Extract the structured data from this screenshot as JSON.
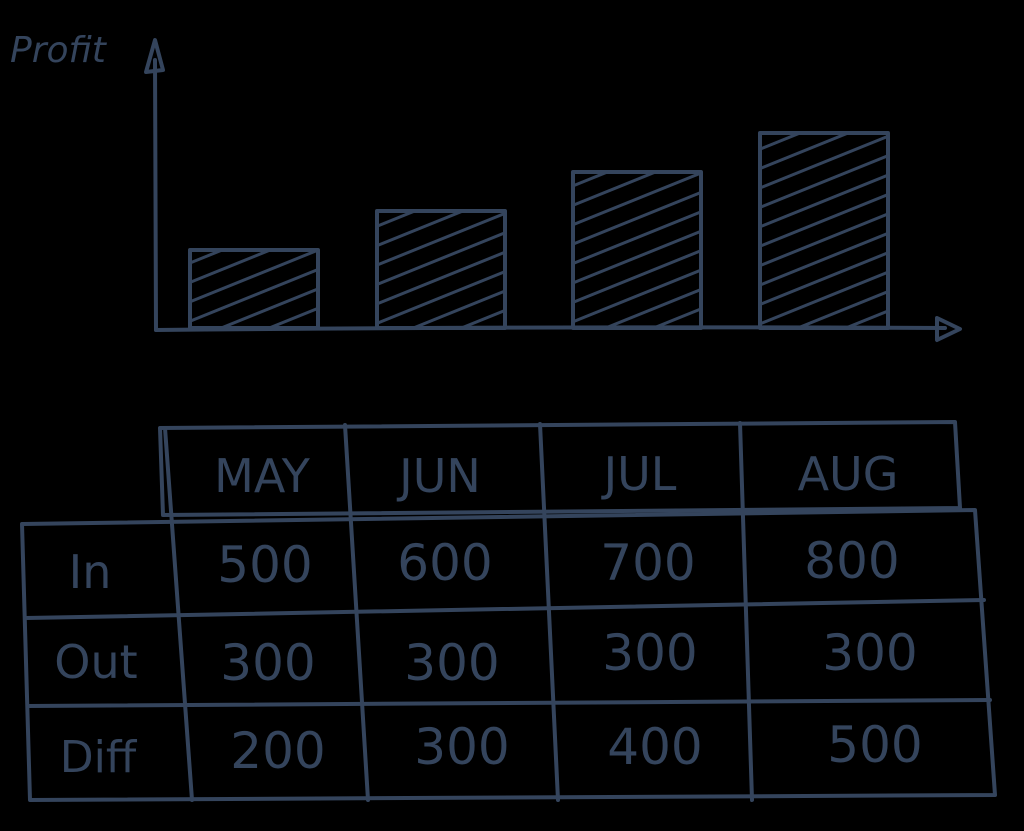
{
  "colors": {
    "background": "#000000",
    "ink": "#34445c"
  },
  "chart_data": {
    "type": "bar",
    "ylabel": "Profit",
    "xlabel": "",
    "categories": [
      "MAY",
      "JUN",
      "JUL",
      "AUG"
    ],
    "values": [
      200,
      300,
      400,
      500
    ],
    "grid": false,
    "bar_fill": "hatched"
  },
  "table": {
    "columns": [
      "MAY",
      "JUN",
      "JUL",
      "AUG"
    ],
    "rows": [
      {
        "label": "In",
        "values": [
          "500",
          "600",
          "700",
          "800"
        ]
      },
      {
        "label": "Out",
        "values": [
          "300",
          "300",
          "300",
          "300"
        ]
      },
      {
        "label": "Diff",
        "values": [
          "200",
          "300",
          "400",
          "500"
        ]
      }
    ]
  }
}
